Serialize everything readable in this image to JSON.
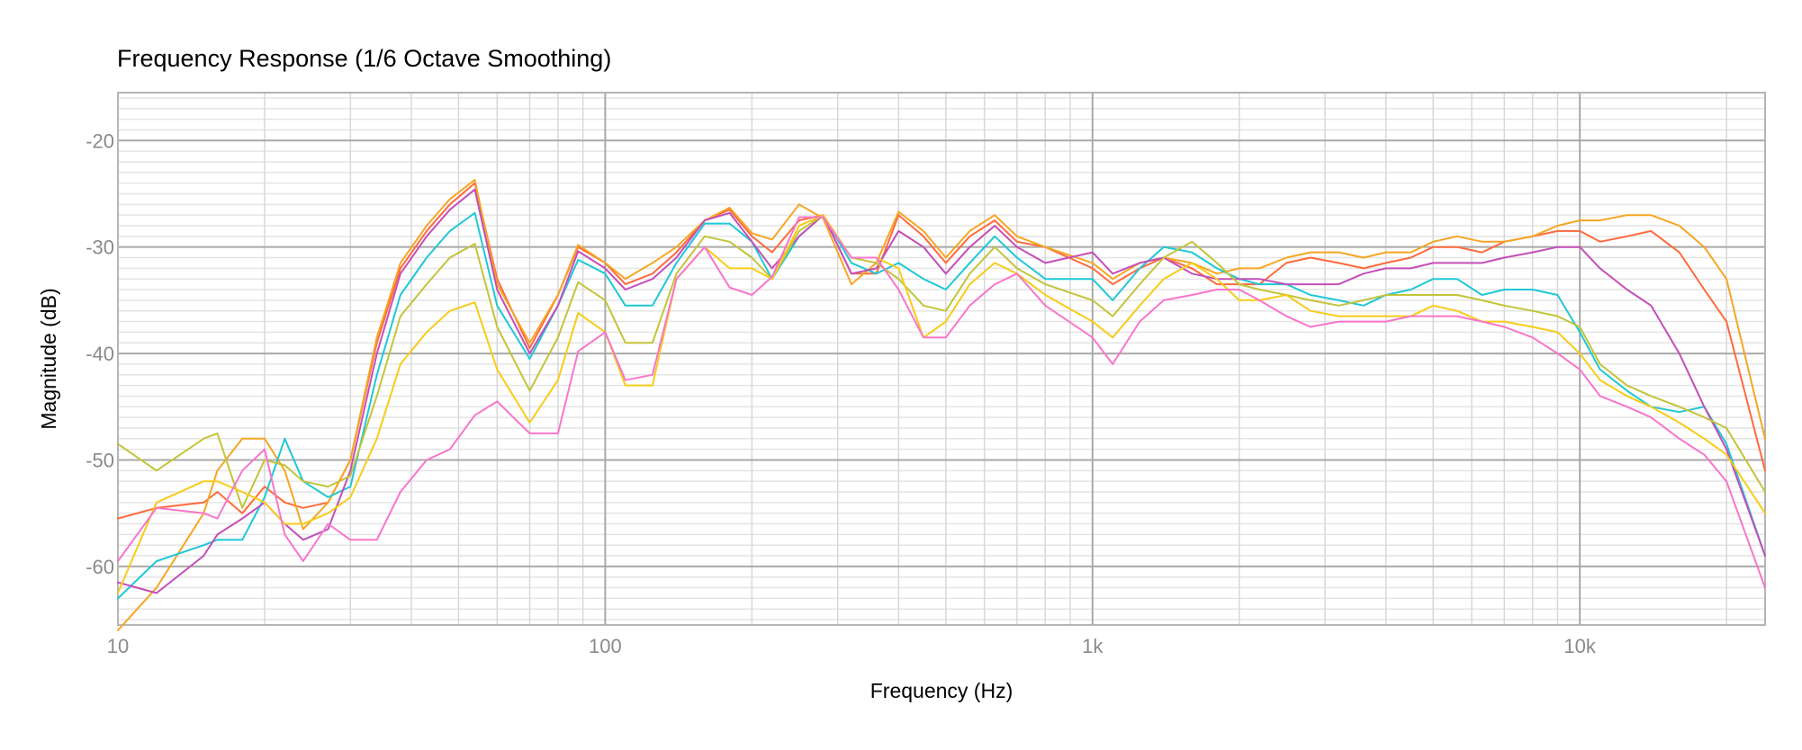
{
  "chart_data": {
    "type": "line",
    "title": "Frequency Response",
    "subtitle": "(1/6 Octave Smoothing)",
    "xlabel": "Frequency (Hz)",
    "ylabel": "Magnitude (dB)",
    "x_scale": "log",
    "xlim": [
      10,
      24000
    ],
    "ylim": [
      -65.5,
      -15.5
    ],
    "x_ticks": [
      {
        "value": 10,
        "label": "10"
      },
      {
        "value": 100,
        "label": "100"
      },
      {
        "value": 1000,
        "label": "1k"
      },
      {
        "value": 10000,
        "label": "10k"
      }
    ],
    "y_ticks": [
      {
        "value": -20,
        "label": "-20"
      },
      {
        "value": -30,
        "label": "-30"
      },
      {
        "value": -40,
        "label": "-40"
      },
      {
        "value": -50,
        "label": "-50"
      },
      {
        "value": -60,
        "label": "-60"
      }
    ],
    "grid": true,
    "legend": "none",
    "x": [
      10,
      12,
      15,
      16,
      18,
      20,
      22,
      24,
      27,
      30,
      34,
      38,
      43,
      48,
      54,
      60,
      70,
      80,
      88,
      100,
      110,
      125,
      140,
      160,
      180,
      200,
      220,
      250,
      280,
      320,
      360,
      400,
      450,
      500,
      560,
      630,
      700,
      800,
      1000,
      1100,
      1250,
      1400,
      1600,
      1800,
      2000,
      2200,
      2500,
      2800,
      3200,
      3600,
      4000,
      4500,
      5000,
      5600,
      6300,
      7000,
      8000,
      9000,
      10000,
      11000,
      12500,
      14000,
      16000,
      18000,
      20000,
      24000
    ],
    "series": [
      {
        "color": "#ff6a3d",
        "values": [
          -55.5,
          -54.5,
          -54,
          -53,
          -55,
          -52.5,
          -54,
          -54.5,
          -54,
          -50,
          -39,
          -32,
          -28.5,
          -26,
          -24,
          -33,
          -39.5,
          -34.5,
          -30,
          -31.5,
          -33.5,
          -32.5,
          -30.5,
          -27.5,
          -26.5,
          -29,
          -30.5,
          -27.5,
          -27,
          -32.5,
          -32.5,
          -27,
          -29,
          -31.5,
          -29,
          -27.5,
          -29.5,
          -30,
          -32,
          -33.5,
          -32,
          -31,
          -32,
          -33.5,
          -33.5,
          -33.5,
          -31.5,
          -31,
          -31.5,
          -32,
          -31.5,
          -31,
          -30,
          -30,
          -30.5,
          -29.5,
          -29,
          -28.5,
          -28.5,
          -29.5,
          -29,
          -28.5,
          -30.5,
          -34,
          -37,
          -51
        ]
      },
      {
        "color": "#f5a623",
        "values": [
          -66,
          -62,
          -55,
          -51,
          -48,
          -48,
          -51,
          -56.5,
          -54,
          -50,
          -38.5,
          -31.5,
          -28,
          -25.5,
          -23.7,
          -33.5,
          -39,
          -34.5,
          -29.8,
          -31.5,
          -33,
          -31.5,
          -30,
          -27.5,
          -26.3,
          -28.7,
          -29.3,
          -26,
          -27.3,
          -33.5,
          -31.5,
          -26.7,
          -28.5,
          -31,
          -28.5,
          -27,
          -29,
          -30,
          -31.5,
          -33,
          -31.5,
          -31,
          -31.5,
          -32.5,
          -32,
          -32,
          -31,
          -30.5,
          -30.5,
          -31,
          -30.5,
          -30.5,
          -29.5,
          -29,
          -29.5,
          -29.5,
          -29,
          -28,
          -27.5,
          -27.5,
          -27,
          -27,
          -28,
          -30,
          -33,
          -48
        ]
      },
      {
        "color": "#1fc8d6",
        "values": [
          -63,
          -59.5,
          -58,
          -57.5,
          -57.5,
          -53.5,
          -48,
          -52,
          -53.5,
          -52.5,
          -42,
          -34.5,
          -31,
          -28.5,
          -26.8,
          -35.5,
          -40.5,
          -35.5,
          -31.2,
          -32.5,
          -35.5,
          -35.5,
          -31.5,
          -27.8,
          -27.8,
          -29.5,
          -33,
          -29,
          -27,
          -31.5,
          -32.5,
          -31.5,
          -33,
          -34,
          -31.5,
          -29,
          -31,
          -33,
          -33,
          -35,
          -32,
          -30,
          -30.5,
          -32,
          -33,
          -33.5,
          -33.5,
          -34.5,
          -35,
          -35.5,
          -34.5,
          -34,
          -33,
          -33,
          -34.5,
          -34,
          -34,
          -34.5,
          -38,
          -41.5,
          -43.5,
          -45,
          -45.5,
          -45,
          -48.5,
          -59
        ]
      },
      {
        "color": "#c44fb8",
        "values": [
          -61.5,
          -62.5,
          -59,
          -57,
          -55.5,
          -54,
          -56,
          -57.5,
          -56.5,
          -51,
          -40,
          -32.5,
          -29,
          -26.5,
          -24.6,
          -34,
          -40,
          -35.5,
          -30.4,
          -32,
          -34,
          -33,
          -31,
          -27.5,
          -26.8,
          -29.5,
          -32,
          -29,
          -27,
          -32.5,
          -32,
          -28.5,
          -30,
          -32.5,
          -30,
          -28,
          -30,
          -31.5,
          -30.5,
          -32.5,
          -31.5,
          -31,
          -32.5,
          -33,
          -33,
          -33,
          -33.5,
          -33.5,
          -33.5,
          -32.5,
          -32,
          -32,
          -31.5,
          -31.5,
          -31.5,
          -31,
          -30.5,
          -30,
          -30,
          -32,
          -34,
          -35.5,
          -40,
          -45,
          -49,
          -59
        ]
      },
      {
        "color": "#c3c43a",
        "values": [
          -48.5,
          -51,
          -48,
          -47.5,
          -54.5,
          -50,
          -50.5,
          -52,
          -52.5,
          -51.5,
          -44,
          -36.5,
          -33.5,
          -31,
          -29.7,
          -37.5,
          -43.5,
          -38.5,
          -33.3,
          -35,
          -39,
          -39,
          -32.5,
          -29,
          -29.5,
          -31,
          -33,
          -28.5,
          -27,
          -31,
          -31.5,
          -33,
          -35.5,
          -36,
          -32.5,
          -30,
          -32,
          -33.5,
          -35,
          -36.5,
          -33.5,
          -31,
          -29.5,
          -31.5,
          -33.5,
          -34,
          -34.5,
          -35,
          -35.5,
          -35,
          -34.5,
          -34.5,
          -34.5,
          -34.5,
          -35,
          -35.5,
          -36,
          -36.5,
          -37.5,
          -41,
          -43,
          -44,
          -45,
          -46,
          -47,
          -53
        ]
      },
      {
        "color": "#f7cc1a",
        "values": [
          -62.5,
          -54,
          -52,
          -52,
          -53,
          -54,
          -56,
          -56,
          -55,
          -53.5,
          -48,
          -41,
          -38,
          -36,
          -35.2,
          -41.5,
          -46.5,
          -42.5,
          -36.2,
          -38,
          -43,
          -43,
          -33,
          -30,
          -32,
          -32,
          -33,
          -28,
          -27,
          -31,
          -31,
          -32,
          -38.5,
          -37,
          -33.5,
          -31.5,
          -32.5,
          -34.5,
          -37,
          -38.5,
          -35.5,
          -33,
          -31.5,
          -33,
          -35,
          -35,
          -34.5,
          -36,
          -36.5,
          -36.5,
          -36.5,
          -36.5,
          -35.5,
          -36,
          -37,
          -37,
          -37.5,
          -38,
          -40,
          -42.5,
          -44,
          -45,
          -46.5,
          -48,
          -49.5,
          -55
        ]
      },
      {
        "color": "#f776cb",
        "values": [
          -59.5,
          -54.5,
          -55,
          -55.5,
          -51,
          -49,
          -57,
          -59.5,
          -56,
          -57.5,
          -57.5,
          -53,
          -50,
          -49,
          -45.8,
          -44.5,
          -47.5,
          -47.5,
          -39.8,
          -38,
          -42.5,
          -42,
          -33,
          -30,
          -33.8,
          -34.5,
          -32.8,
          -27.2,
          -27.2,
          -31,
          -31,
          -34,
          -38.5,
          -38.5,
          -35.5,
          -33.5,
          -32.5,
          -35.5,
          -38.5,
          -41,
          -37,
          -35,
          -34.5,
          -34,
          -34,
          -35,
          -36.5,
          -37.5,
          -37,
          -37,
          -37,
          -36.5,
          -36.5,
          -36.5,
          -37,
          -37.5,
          -38.5,
          -40,
          -41.5,
          -44,
          -45,
          -46,
          -48,
          -49.5,
          -52,
          -62
        ]
      }
    ]
  }
}
